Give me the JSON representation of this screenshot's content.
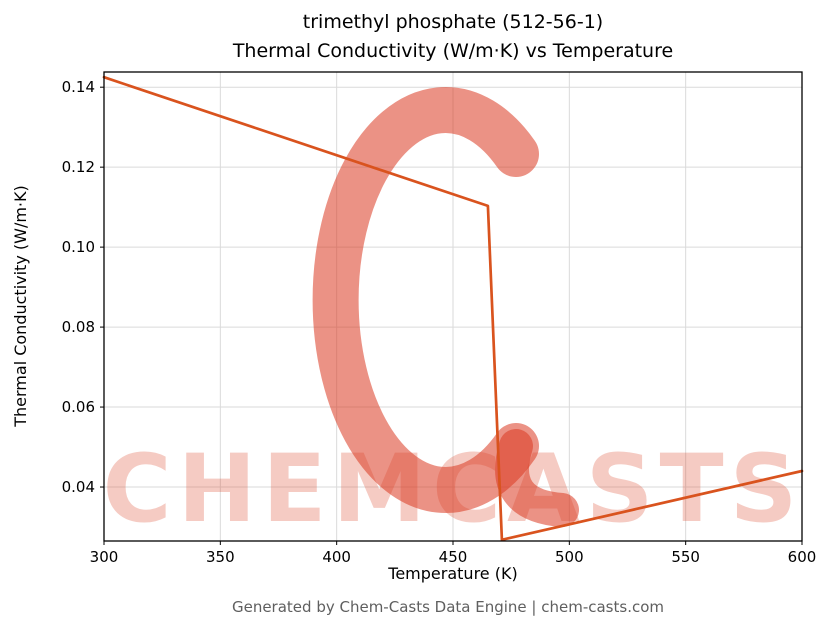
{
  "chart_data": {
    "type": "line",
    "title": "trimethyl phosphate (512-56-1)",
    "subtitle": "Thermal Conductivity (W/m·K) vs Temperature",
    "xlabel": "Temperature (K)",
    "ylabel": "Thermal Conductivity (W/m·K)",
    "xlim": [
      300,
      600
    ],
    "ylim": [
      0.0265,
      0.1438
    ],
    "x_ticks": [
      300,
      350,
      400,
      450,
      500,
      550,
      600
    ],
    "y_ticks": [
      0.04,
      0.06,
      0.08,
      0.1,
      0.12,
      0.14
    ],
    "grid": true,
    "legend_position": "none",
    "line_color": "#d9531e",
    "series": [
      {
        "name": "Thermal Conductivity (W/m·K)",
        "x": [
          300,
          465,
          471,
          600
        ],
        "y": [
          0.1425,
          0.1103,
          0.0268,
          0.044
        ]
      }
    ]
  },
  "watermark": {
    "text": "CHEMCASTS",
    "logo": "chemcasts-c-swirl-logo",
    "color": "#db3921"
  },
  "footer": {
    "text": "Generated by Chem-Casts Data Engine | chem-casts.com"
  }
}
